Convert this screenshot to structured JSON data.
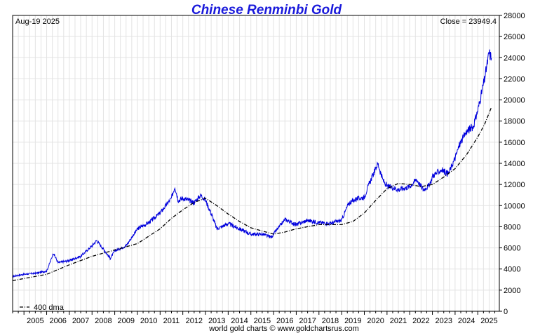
{
  "chart_data": {
    "type": "line",
    "title": "Chinese Renminbi Gold",
    "date_label": "Aug-19  2025",
    "close_label": "Close = 23949.4",
    "footer": "world gold charts © www.goldchartsrus.com",
    "ylim": [
      0,
      28000
    ],
    "y_ticks": [
      0,
      2000,
      4000,
      6000,
      8000,
      10000,
      12000,
      14000,
      16000,
      18000,
      20000,
      22000,
      24000,
      26000,
      28000
    ],
    "x_range": [
      2004.5,
      2025.95
    ],
    "x_ticks": [
      "2005",
      "2006",
      "2007",
      "2008",
      "2009",
      "2010",
      "2011",
      "2012",
      "2013",
      "2014",
      "2015",
      "2016",
      "2017",
      "2018",
      "2019",
      "2020",
      "2021",
      "2022",
      "2023",
      "2024",
      "2025"
    ],
    "grid": true,
    "legend_position": "bottom-left",
    "colors": {
      "price": "#0000dd",
      "dma": "#000000",
      "title": "#1a1adb"
    },
    "series": [
      {
        "name": "",
        "style": "solid",
        "x": [
          2004.5,
          2005.0,
          2005.5,
          2006.0,
          2006.3,
          2006.5,
          2007.0,
          2007.5,
          2008.0,
          2008.2,
          2008.5,
          2008.8,
          2009.0,
          2009.5,
          2010.0,
          2010.5,
          2011.0,
          2011.5,
          2011.65,
          2011.8,
          2012.0,
          2012.5,
          2012.8,
          2013.0,
          2013.3,
          2013.5,
          2014.0,
          2014.5,
          2015.0,
          2015.5,
          2015.9,
          2016.0,
          2016.5,
          2017.0,
          2017.5,
          2018.0,
          2018.5,
          2018.8,
          2019.0,
          2019.3,
          2019.6,
          2020.0,
          2020.2,
          2020.6,
          2020.8,
          2021.0,
          2021.3,
          2021.5,
          2022.0,
          2022.3,
          2022.6,
          2022.9,
          2023.0,
          2023.4,
          2023.7,
          2024.0,
          2024.2,
          2024.5,
          2024.8,
          2025.0,
          2025.2,
          2025.3,
          2025.5,
          2025.6
        ],
        "values": [
          3300,
          3500,
          3600,
          3800,
          5500,
          4600,
          4800,
          5200,
          6200,
          6700,
          5900,
          5000,
          5700,
          6200,
          7800,
          8400,
          9300,
          10700,
          11800,
          10500,
          10700,
          10300,
          11000,
          10500,
          9000,
          7800,
          8300,
          7800,
          7300,
          7300,
          7000,
          7300,
          8700,
          8200,
          8600,
          8400,
          8300,
          8500,
          8600,
          10200,
          10600,
          10800,
          12000,
          14000,
          12500,
          11800,
          11700,
          11500,
          11800,
          12500,
          11500,
          12000,
          12800,
          13400,
          13000,
          14500,
          15800,
          17000,
          17500,
          19000,
          21000,
          22000,
          24500,
          23949.4
        ]
      },
      {
        "name": "400 dma",
        "style": "dashdot",
        "x": [
          2004.5,
          2005.0,
          2006.0,
          2007.0,
          2008.0,
          2009.0,
          2010.0,
          2011.0,
          2011.5,
          2012.0,
          2012.5,
          2013.0,
          2013.5,
          2014.0,
          2014.5,
          2015.0,
          2015.5,
          2016.0,
          2016.5,
          2017.0,
          2018.0,
          2019.0,
          2019.5,
          2020.0,
          2020.5,
          2021.0,
          2021.5,
          2022.0,
          2022.5,
          2023.0,
          2023.5,
          2024.0,
          2024.5,
          2025.0,
          2025.3,
          2025.6
        ],
        "values": [
          2900,
          3100,
          3500,
          4400,
          5200,
          5800,
          6400,
          7800,
          8800,
          9600,
          10300,
          10700,
          10000,
          9200,
          8500,
          7900,
          7600,
          7300,
          7500,
          7800,
          8200,
          8200,
          8500,
          9300,
          10500,
          11600,
          12100,
          12000,
          11800,
          12000,
          12700,
          13500,
          14800,
          16500,
          17700,
          19300
        ]
      }
    ]
  }
}
